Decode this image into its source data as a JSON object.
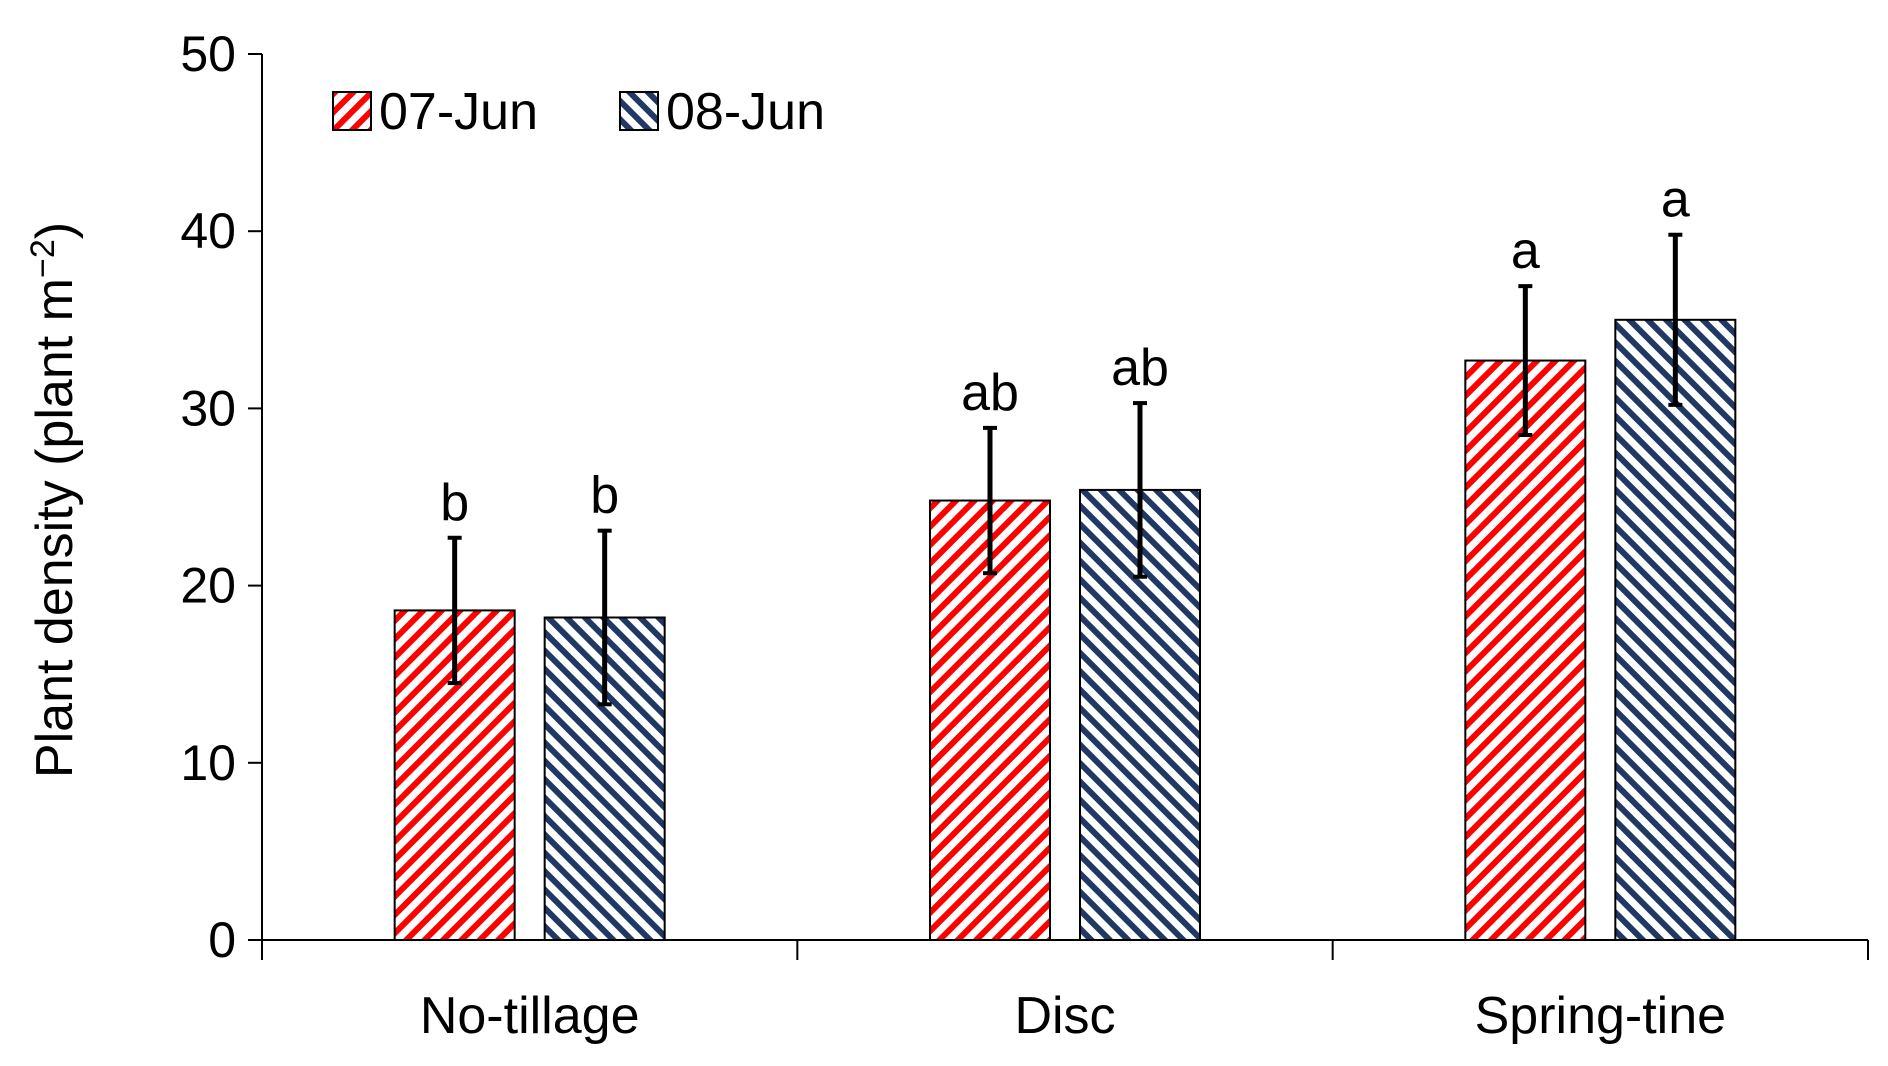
{
  "chart_data": {
    "type": "bar",
    "title": "",
    "xlabel": "",
    "ylabel": "Plant density (plant m",
    "ylabel_sup": "−2",
    "ylabel_close": ")",
    "ylim": [
      0,
      50
    ],
    "yticks": [
      0,
      10,
      20,
      30,
      40,
      50
    ],
    "categories": [
      "No-tillage",
      "Disc",
      "Spring-tine"
    ],
    "series": [
      {
        "name": "07-Jun",
        "color": "#ff0000",
        "pattern": "red-diagonal-hatch",
        "values": [
          18.6,
          24.8,
          32.7
        ],
        "errors": [
          4.1,
          4.1,
          4.2
        ],
        "sig_letters": [
          "b",
          "ab",
          "a"
        ]
      },
      {
        "name": "08-Jun",
        "color": "#1f3864",
        "pattern": "navy-diagonal-hatch",
        "values": [
          18.2,
          25.4,
          35.0
        ],
        "errors": [
          4.9,
          4.9,
          4.8
        ],
        "sig_letters": [
          "b",
          "ab",
          "a"
        ]
      }
    ],
    "grid": false,
    "legend_position": "top-left"
  }
}
